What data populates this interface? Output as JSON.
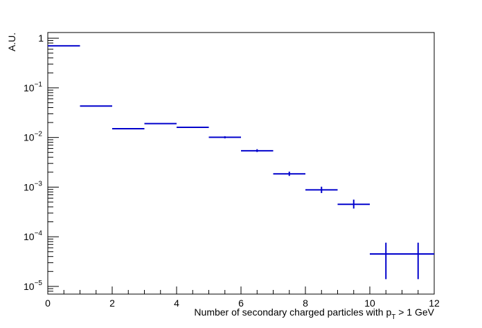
{
  "chart_data": {
    "type": "scatter",
    "title": "",
    "xlabel_prefix": "Number of secondary charged particles with p",
    "xlabel_subscript": "T",
    "xlabel_suffix": " > 1 GeV",
    "ylabel": "A.U.",
    "xlim": [
      0,
      12
    ],
    "ylim": [
      7e-06,
      1.3
    ],
    "yscale": "log",
    "grid": false,
    "legend": "none",
    "color": "#0000cc",
    "x_ticks": [
      "0",
      "2",
      "4",
      "6",
      "8",
      "10",
      "12"
    ],
    "y_ticks": [
      {
        "base": "1",
        "exp": ""
      },
      {
        "base": "10",
        "exp": "−1"
      },
      {
        "base": "10",
        "exp": "−2"
      },
      {
        "base": "10",
        "exp": "−3"
      },
      {
        "base": "10",
        "exp": "−4"
      },
      {
        "base": "10",
        "exp": "−5"
      }
    ],
    "bins": [
      {
        "x": 0.5,
        "xerr": 0.5,
        "y": 0.7,
        "ylo": 0.7,
        "yhi": 0.7
      },
      {
        "x": 1.5,
        "xerr": 0.5,
        "y": 0.043,
        "ylo": 0.043,
        "yhi": 0.043
      },
      {
        "x": 2.5,
        "xerr": 0.5,
        "y": 0.015,
        "ylo": 0.015,
        "yhi": 0.015
      },
      {
        "x": 3.5,
        "xerr": 0.5,
        "y": 0.019,
        "ylo": 0.019,
        "yhi": 0.019
      },
      {
        "x": 4.5,
        "xerr": 0.5,
        "y": 0.016,
        "ylo": 0.016,
        "yhi": 0.016
      },
      {
        "x": 5.5,
        "xerr": 0.5,
        "y": 0.0101,
        "ylo": 0.0096,
        "yhi": 0.0106
      },
      {
        "x": 6.5,
        "xerr": 0.5,
        "y": 0.0054,
        "ylo": 0.0051,
        "yhi": 0.0058
      },
      {
        "x": 7.5,
        "xerr": 0.5,
        "y": 0.00185,
        "ylo": 0.00168,
        "yhi": 0.00205
      },
      {
        "x": 8.5,
        "xerr": 0.5,
        "y": 0.00088,
        "ylo": 0.00076,
        "yhi": 0.00102
      },
      {
        "x": 9.5,
        "xerr": 0.5,
        "y": 0.00045,
        "ylo": 0.00037,
        "yhi": 0.00056
      },
      {
        "x": 10.5,
        "xerr": 0.5,
        "y": 4.5e-05,
        "ylo": 1.4e-05,
        "yhi": 7.6e-05
      },
      {
        "x": 11.5,
        "xerr": 0.5,
        "y": 4.5e-05,
        "ylo": 1.4e-05,
        "yhi": 7.6e-05
      }
    ]
  }
}
